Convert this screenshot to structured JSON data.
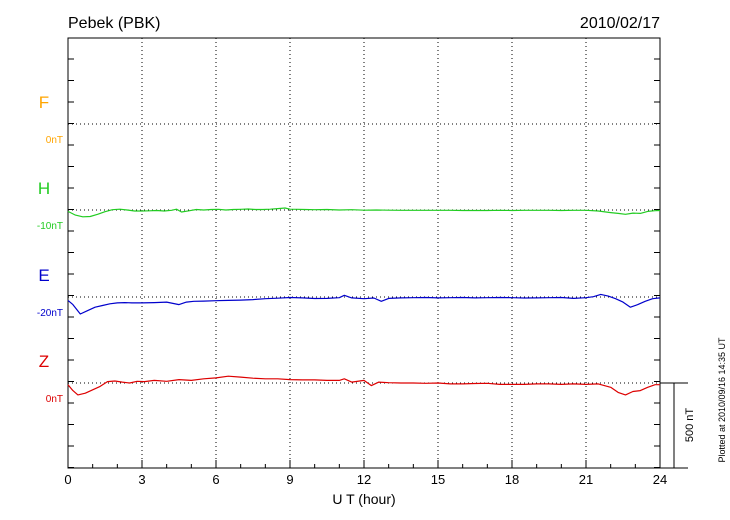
{
  "chart_data": {
    "type": "line",
    "title": "Pebek (PBK)",
    "date": "2010/02/17",
    "xlabel": "U T (hour)",
    "xlim": [
      0,
      24
    ],
    "xticks": [
      0,
      3,
      6,
      9,
      12,
      15,
      18,
      21,
      24
    ],
    "grid": true,
    "scale_bar_label": "500 nT",
    "scale_bar_nT": 500,
    "footnote": "Plotted at 2010/09/16 14:35 UT",
    "series": [
      {
        "name": "F",
        "baseline_label": "0nT",
        "color": "#FFA500",
        "data": []
      },
      {
        "name": "H",
        "baseline_label": "-10nT",
        "color": "#22CC22",
        "x": [
          0,
          0.3,
          0.6,
          0.9,
          1.2,
          1.5,
          1.8,
          2.1,
          2.4,
          2.7,
          3.0,
          3.3,
          3.6,
          3.9,
          4.2,
          4.4,
          4.6,
          4.9,
          5.2,
          5.5,
          5.8,
          6.1,
          6.4,
          6.7,
          7.0,
          7.3,
          7.6,
          7.9,
          8.2,
          8.5,
          8.8,
          9.0,
          9.3,
          9.6,
          10.0,
          10.5,
          11.0,
          11.5,
          12.0,
          12.5,
          13.0,
          13.5,
          14.0,
          14.5,
          15.0,
          15.5,
          16.0,
          16.5,
          17.0,
          17.5,
          18.0,
          18.5,
          19.0,
          19.5,
          20.0,
          20.5,
          21.0,
          21.5,
          22.0,
          22.3,
          22.6,
          22.9,
          23.2,
          23.5,
          23.8,
          24.0
        ],
        "y": [
          -8,
          -30,
          -40,
          -38,
          -25,
          -10,
          2,
          5,
          0,
          -6,
          -6,
          -5,
          -3,
          -6,
          -2,
          5,
          -12,
          -5,
          3,
          0,
          3,
          4,
          0,
          3,
          4,
          6,
          3,
          3,
          5,
          8,
          12,
          5,
          4,
          3,
          2,
          3,
          0,
          2,
          -1,
          0,
          -1,
          -2,
          -2,
          -2,
          -2,
          -2,
          -3,
          -3,
          -3,
          -2,
          -3,
          -2,
          -2,
          -2,
          -3,
          -2,
          -2,
          -6,
          -15,
          -20,
          -25,
          -18,
          -20,
          -8,
          -4,
          -3
        ]
      },
      {
        "name": "E",
        "baseline_label": "-20nT",
        "color": "#0000CC",
        "x": [
          0,
          0.2,
          0.5,
          0.8,
          1.1,
          1.4,
          1.7,
          2.0,
          2.3,
          2.6,
          3.0,
          3.5,
          4.0,
          4.5,
          4.8,
          5.1,
          5.5,
          6.0,
          6.5,
          7.0,
          7.5,
          8.0,
          8.5,
          9.0,
          9.5,
          10.0,
          10.5,
          11.0,
          11.2,
          11.5,
          12.0,
          12.4,
          12.7,
          13.0,
          13.5,
          14.0,
          14.5,
          15.0,
          15.5,
          16.0,
          16.5,
          17.0,
          17.5,
          18.0,
          18.5,
          19.0,
          19.5,
          20.0,
          20.5,
          21.0,
          21.3,
          21.6,
          21.9,
          22.2,
          22.5,
          22.8,
          23.1,
          23.4,
          23.7,
          24.0
        ],
        "y": [
          -20,
          -45,
          -100,
          -80,
          -60,
          -50,
          -40,
          -35,
          -33,
          -35,
          -35,
          -33,
          -30,
          -45,
          -30,
          -25,
          -24,
          -22,
          -20,
          -18,
          -15,
          -10,
          -7,
          -3,
          -5,
          -9,
          -8,
          -4,
          10,
          -5,
          -10,
          -6,
          -25,
          -8,
          -5,
          -4,
          -3,
          -5,
          -4,
          -3,
          -5,
          -4,
          -3,
          -4,
          -6,
          -5,
          -4,
          -3,
          -8,
          -4,
          2,
          15,
          5,
          -10,
          -30,
          -60,
          -45,
          -25,
          -10,
          -5
        ]
      },
      {
        "name": "Z",
        "baseline_label": "0nT",
        "color": "#DD0000",
        "x": [
          0,
          0.2,
          0.4,
          0.7,
          1.0,
          1.3,
          1.6,
          1.9,
          2.2,
          2.5,
          2.8,
          3.1,
          3.5,
          4.0,
          4.5,
          5.0,
          5.5,
          6.0,
          6.5,
          7.0,
          7.5,
          8.0,
          8.5,
          9.0,
          9.5,
          10.0,
          10.5,
          11.0,
          11.2,
          11.5,
          12.0,
          12.3,
          12.6,
          13.0,
          13.5,
          14.0,
          14.5,
          15.0,
          15.5,
          16.0,
          16.5,
          17.0,
          17.5,
          18.0,
          18.5,
          19.0,
          19.5,
          20.0,
          20.5,
          21.0,
          21.5,
          22.0,
          22.3,
          22.6,
          22.9,
          23.2,
          23.5,
          23.8,
          24.0
        ],
        "y": [
          -10,
          -45,
          -70,
          -60,
          -40,
          -20,
          8,
          12,
          5,
          0,
          10,
          8,
          15,
          10,
          20,
          15,
          25,
          30,
          40,
          35,
          28,
          25,
          25,
          20,
          18,
          18,
          15,
          15,
          25,
          5,
          15,
          -15,
          5,
          2,
          0,
          0,
          -2,
          0,
          -5,
          -5,
          -3,
          -2,
          -8,
          -8,
          -8,
          -5,
          -5,
          -8,
          -5,
          -8,
          -5,
          -25,
          -55,
          -70,
          -50,
          -45,
          -25,
          -10,
          -10
        ]
      }
    ]
  }
}
